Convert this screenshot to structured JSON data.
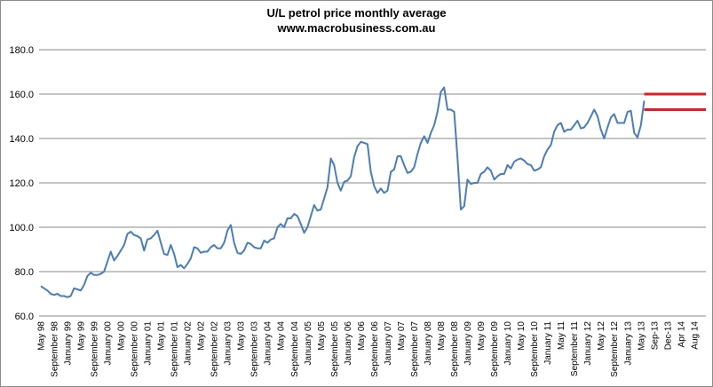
{
  "chart_data": {
    "type": "line",
    "title": "U/L petrol price monthly average",
    "subtitle": "www.macrobusiness.com.au",
    "xlabel": "",
    "ylabel": "",
    "ylim": [
      60,
      180
    ],
    "y_ticks": [
      "60.0",
      "80.0",
      "100.0",
      "120.0",
      "140.0",
      "160.0",
      "180.0"
    ],
    "grid": "horizontal",
    "colors": {
      "line": "#4a7ebb",
      "reference": "#e41b23",
      "grid": "#888888"
    },
    "x_tick_labels": [
      "May 98",
      "September 98",
      "January 99",
      "May 99",
      "September 99",
      "January 00",
      "May 00",
      "September 00",
      "January 01",
      "May 01",
      "September 01",
      "January 02",
      "May 02",
      "September 02",
      "January 03",
      "May 03",
      "September 03",
      "January 04",
      "May 04",
      "September 04",
      "January 05",
      "May 05",
      "September 05",
      "January 06",
      "May 06",
      "September 06",
      "January 07",
      "May 07",
      "September 07",
      "January 08",
      "May 08",
      "September 08",
      "January 09",
      "May 09",
      "September 09",
      "January 10",
      "May 10",
      "September 10",
      "January 11",
      "May 11",
      "September 11",
      "January 12",
      "May 12",
      "September 12",
      "January 13",
      "May 13",
      "Sep-13",
      "Dec-13",
      "Apr 14",
      "Aug 14"
    ],
    "series": [
      {
        "values": [
          73.5,
          72.5,
          71.5,
          70,
          69.5,
          70,
          69,
          69,
          68.5,
          69,
          72.5,
          72,
          71.5,
          74,
          78,
          79.5,
          78.5,
          78.5,
          79,
          80,
          84.5,
          89,
          85,
          87,
          89.5,
          92,
          97,
          98,
          96.5,
          96,
          95,
          89.5,
          94.5,
          95,
          96.5,
          98.5,
          93,
          88,
          87.5,
          92,
          88,
          82,
          83,
          81.5,
          83.5,
          86,
          91,
          90.5,
          88.5,
          89,
          89,
          91,
          92,
          90.5,
          90.5,
          93,
          98.5,
          101,
          93,
          88.5,
          88,
          89.5,
          93,
          92.5,
          91,
          90.5,
          90.5,
          94,
          93,
          94.5,
          95,
          100,
          101.5,
          100,
          104,
          104,
          106,
          105,
          101.5,
          97.5,
          100,
          105,
          110,
          107.5,
          108,
          113,
          118,
          131,
          128,
          120,
          116.5,
          120.5,
          121,
          123,
          131.5,
          136.5,
          138.5,
          138,
          137.5,
          125,
          118.5,
          115.5,
          117.5,
          115.5,
          116.5,
          125,
          126,
          132,
          132,
          128,
          124.5,
          125,
          127,
          133,
          138,
          141,
          138,
          142.5,
          146,
          152,
          161,
          163,
          153,
          153,
          152,
          131,
          108,
          109.5,
          121.5,
          119.5,
          120,
          120,
          124,
          125,
          127,
          125.5,
          121.5,
          123,
          124,
          124,
          128,
          126.5,
          129.5,
          130.5,
          131,
          130,
          128.5,
          128,
          125.5,
          126,
          127,
          132,
          135,
          137,
          143,
          146,
          147,
          143,
          144,
          144,
          146,
          148,
          144.5,
          145,
          147,
          150,
          153,
          150,
          144,
          140,
          145,
          149.5,
          151,
          147,
          147,
          147,
          152,
          152.5,
          142.5,
          140.5,
          146,
          157
        ]
      }
    ],
    "reference_lines": [
      160,
      153
    ]
  }
}
